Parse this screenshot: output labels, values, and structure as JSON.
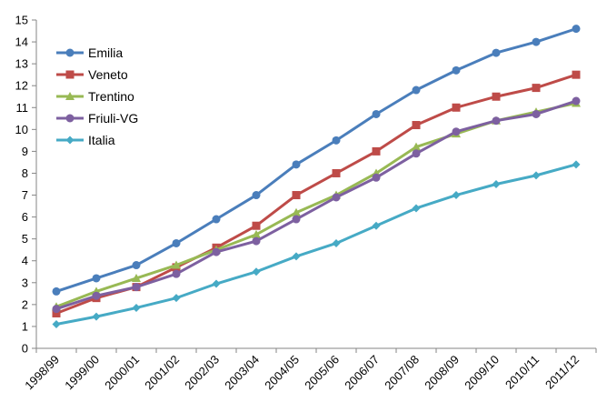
{
  "chart_data": {
    "type": "line",
    "title": "",
    "xlabel": "",
    "ylabel": "",
    "categories": [
      "1998/99",
      "1999/00",
      "2000/01",
      "2001/02",
      "2002/03",
      "2003/04",
      "2004/05",
      "2005/06",
      "2006/07",
      "2007/08",
      "2008/09",
      "2009/10",
      "2010/11",
      "2011/12"
    ],
    "ylim": [
      0,
      15
    ],
    "yticks": [
      0,
      1,
      2,
      3,
      4,
      5,
      6,
      7,
      8,
      9,
      10,
      11,
      12,
      13,
      14,
      15
    ],
    "grid": false,
    "legend_position": "top-left",
    "series": [
      {
        "name": "Emilia",
        "color": "#4a7ebb",
        "marker": "circle",
        "values": [
          2.6,
          3.2,
          3.8,
          4.8,
          5.9,
          7.0,
          8.4,
          9.5,
          10.7,
          11.8,
          12.7,
          13.5,
          14.0,
          14.6
        ]
      },
      {
        "name": "Veneto",
        "color": "#be4b48",
        "marker": "square",
        "values": [
          1.6,
          2.3,
          2.8,
          3.7,
          4.6,
          5.6,
          7.0,
          8.0,
          9.0,
          10.2,
          11.0,
          11.5,
          11.9,
          12.5
        ]
      },
      {
        "name": "Trentino",
        "color": "#98b954",
        "marker": "triangle",
        "values": [
          1.9,
          2.6,
          3.2,
          3.8,
          4.5,
          5.2,
          6.2,
          7.0,
          8.0,
          9.2,
          9.8,
          10.4,
          10.8,
          11.2
        ]
      },
      {
        "name": "Friuli-VG",
        "color": "#7d60a0",
        "marker": "circle",
        "values": [
          1.8,
          2.4,
          2.8,
          3.4,
          4.4,
          4.9,
          5.9,
          6.9,
          7.8,
          8.9,
          9.9,
          10.4,
          10.7,
          11.3
        ]
      },
      {
        "name": "Italia",
        "color": "#46aac5",
        "marker": "diamond",
        "values": [
          1.1,
          1.45,
          1.85,
          2.3,
          2.95,
          3.5,
          4.2,
          4.8,
          5.6,
          6.4,
          7.0,
          7.5,
          7.9,
          8.4
        ]
      }
    ]
  }
}
